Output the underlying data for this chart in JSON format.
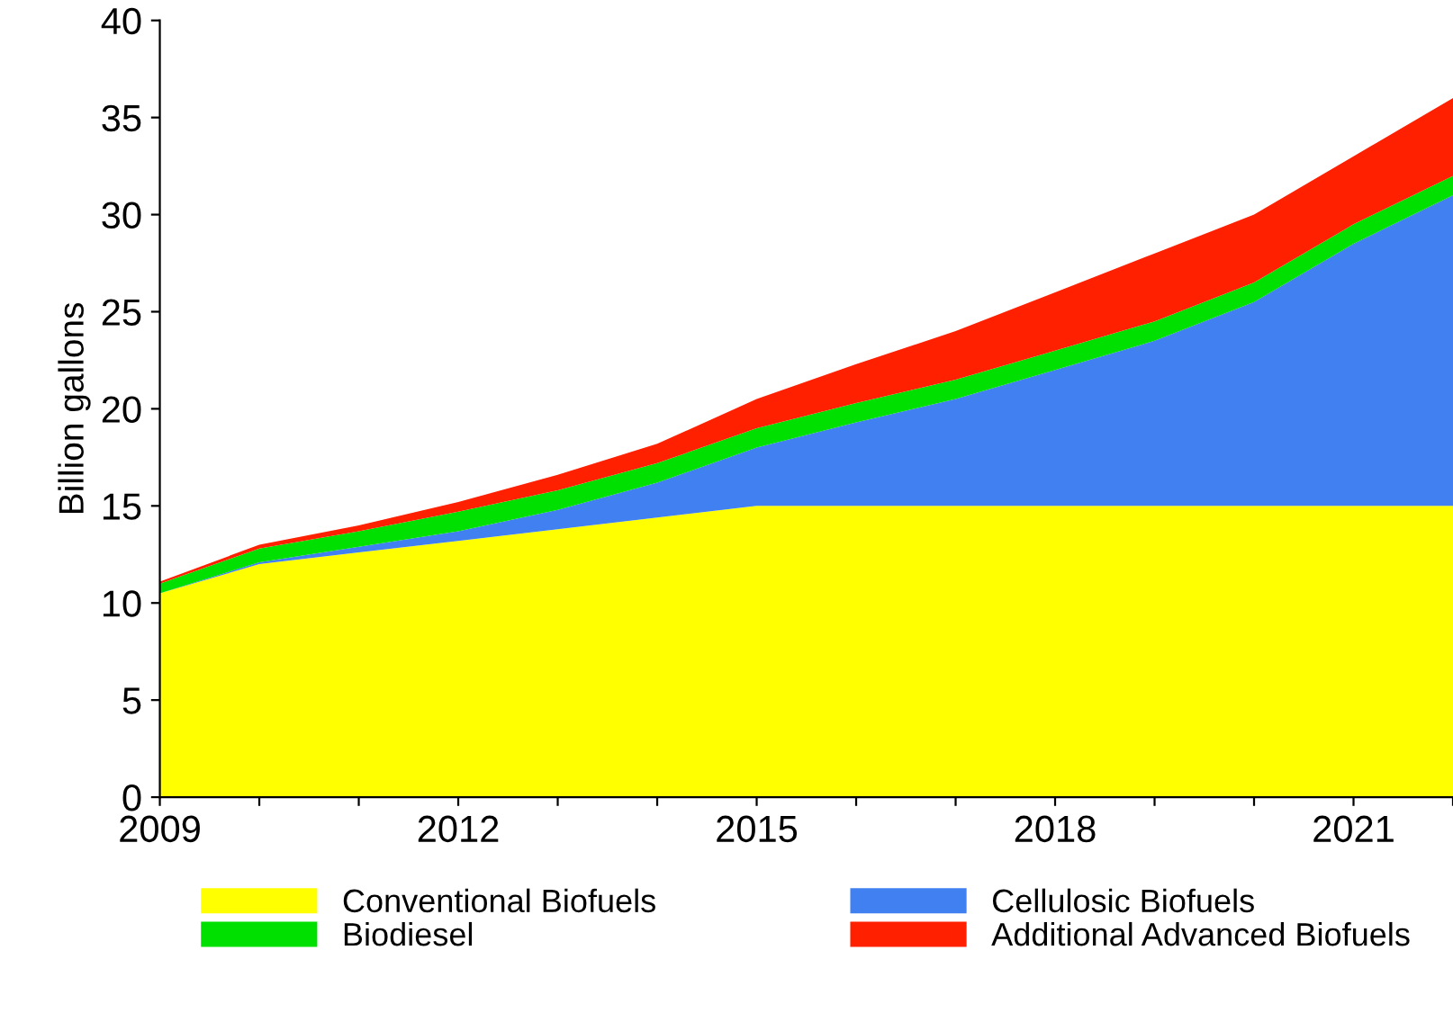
{
  "chart_data": {
    "type": "area",
    "stacked": true,
    "ylabel": "Billion gallons",
    "x": [
      2009,
      2010,
      2011,
      2012,
      2013,
      2014,
      2015,
      2016,
      2017,
      2018,
      2019,
      2020,
      2021,
      2022
    ],
    "series": [
      {
        "name": "Conventional Biofuels",
        "color": "#ffff00",
        "values": [
          10.5,
          12.0,
          12.6,
          13.2,
          13.8,
          14.4,
          15,
          15,
          15,
          15,
          15,
          15,
          15,
          15
        ]
      },
      {
        "name": "Cellulosic Biofuels",
        "color": "#4080f0",
        "values": [
          0,
          0.1,
          0.3,
          0.5,
          1.0,
          1.8,
          3.0,
          4.3,
          5.5,
          7.0,
          8.5,
          10.5,
          13.5,
          16
        ]
      },
      {
        "name": "Biodiesel",
        "color": "#00e000",
        "values": [
          0.5,
          0.7,
          0.8,
          1.0,
          1.0,
          1.0,
          1.0,
          1.0,
          1.0,
          1.0,
          1.0,
          1.0,
          1.0,
          1.0
        ]
      },
      {
        "name": "Additional Advanced Biofuels",
        "color": "#ff2000",
        "values": [
          0.1,
          0.2,
          0.3,
          0.5,
          0.8,
          1.0,
          1.5,
          2.0,
          2.5,
          3.0,
          3.5,
          3.5,
          3.5,
          4.0
        ]
      }
    ],
    "xlim": [
      2009,
      2022
    ],
    "xticks": [
      2009,
      {
        "value": 2010,
        "label": null
      },
      {
        "value": 2011,
        "label": null
      },
      2012,
      {
        "value": 2013,
        "label": null
      },
      {
        "value": 2014,
        "label": null
      },
      2015,
      {
        "value": 2016,
        "label": null
      },
      {
        "value": 2017,
        "label": null
      },
      2018,
      {
        "value": 2019,
        "label": null
      },
      {
        "value": 2020,
        "label": null
      },
      2021,
      {
        "value": 2022,
        "label": null
      }
    ],
    "ylim": [
      0,
      40
    ],
    "yticks": [
      0,
      5,
      10,
      15,
      20,
      25,
      30,
      35,
      40
    ],
    "grid": false,
    "legend": "bottom"
  }
}
